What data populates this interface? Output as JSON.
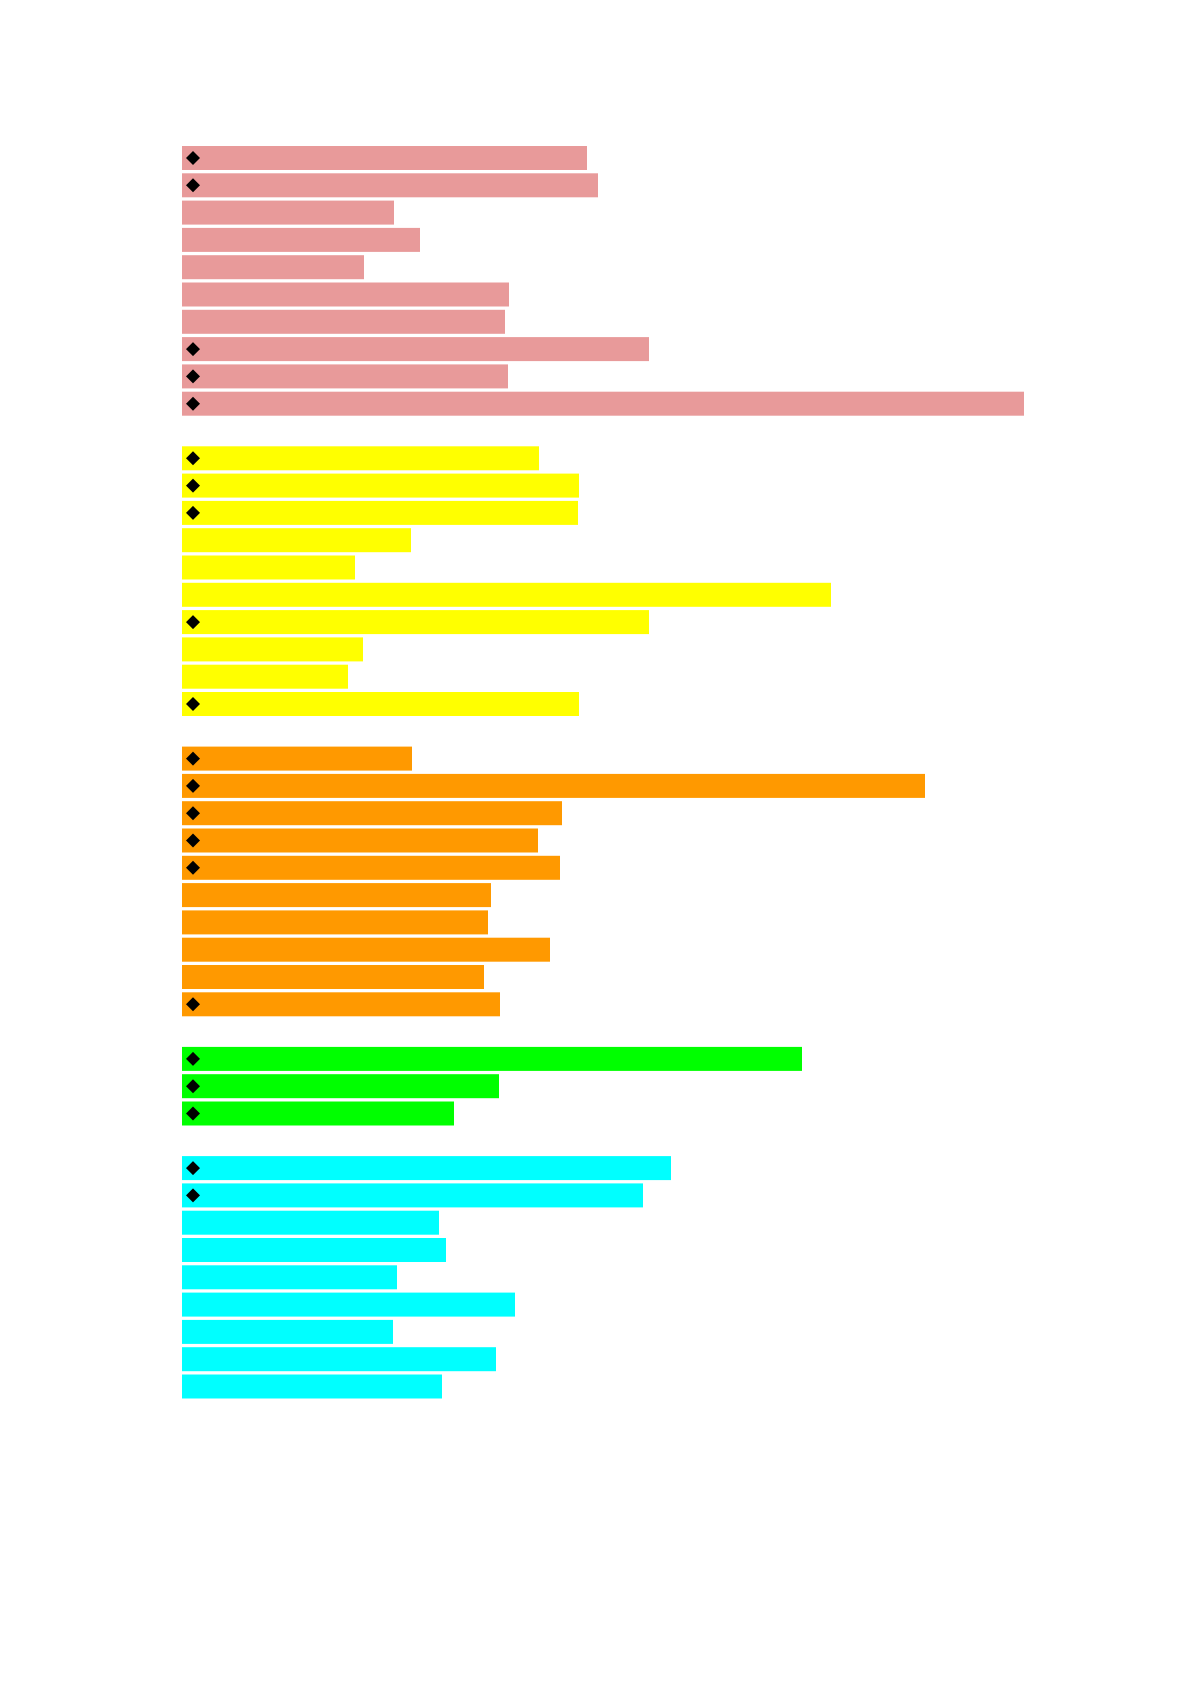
{
  "chart_data": {
    "type": "bar",
    "orientation": "horizontal",
    "groups": [
      {
        "color": "#e89a9a",
        "bars": [
          {
            "value": 405,
            "marker": true
          },
          {
            "value": 416,
            "marker": true
          },
          {
            "value": 212,
            "marker": false
          },
          {
            "value": 238,
            "marker": false
          },
          {
            "value": 182,
            "marker": false
          },
          {
            "value": 327,
            "marker": false
          },
          {
            "value": 323,
            "marker": false
          },
          {
            "value": 467,
            "marker": true
          },
          {
            "value": 326,
            "marker": true
          },
          {
            "value": 842,
            "marker": true
          }
        ]
      },
      {
        "color": "#ffff00",
        "bars": [
          {
            "value": 357,
            "marker": true
          },
          {
            "value": 397,
            "marker": true
          },
          {
            "value": 396,
            "marker": true
          },
          {
            "value": 229,
            "marker": false
          },
          {
            "value": 173,
            "marker": false
          },
          {
            "value": 649,
            "marker": false
          },
          {
            "value": 467,
            "marker": true
          },
          {
            "value": 181,
            "marker": false
          },
          {
            "value": 166,
            "marker": false
          },
          {
            "value": 397,
            "marker": true
          }
        ]
      },
      {
        "color": "#ff9900",
        "bars": [
          {
            "value": 230,
            "marker": true
          },
          {
            "value": 743,
            "marker": true
          },
          {
            "value": 380,
            "marker": true
          },
          {
            "value": 356,
            "marker": true
          },
          {
            "value": 378,
            "marker": true
          },
          {
            "value": 309,
            "marker": false
          },
          {
            "value": 306,
            "marker": false
          },
          {
            "value": 368,
            "marker": false
          },
          {
            "value": 302,
            "marker": false
          },
          {
            "value": 318,
            "marker": true
          }
        ]
      },
      {
        "color": "#00ff00",
        "bars": [
          {
            "value": 620,
            "marker": true
          },
          {
            "value": 317,
            "marker": true
          },
          {
            "value": 272,
            "marker": true
          }
        ]
      },
      {
        "color": "#00ffff",
        "bars": [
          {
            "value": 489,
            "marker": true
          },
          {
            "value": 461,
            "marker": true
          },
          {
            "value": 257,
            "marker": false
          },
          {
            "value": 264,
            "marker": false
          },
          {
            "value": 215,
            "marker": false
          },
          {
            "value": 333,
            "marker": false
          },
          {
            "value": 211,
            "marker": false
          },
          {
            "value": 314,
            "marker": false
          },
          {
            "value": 260,
            "marker": false
          }
        ]
      }
    ],
    "marker_icon": "diamond-icon",
    "title": "",
    "xlabel": "",
    "ylabel": "",
    "grid": false,
    "legend": "none"
  }
}
